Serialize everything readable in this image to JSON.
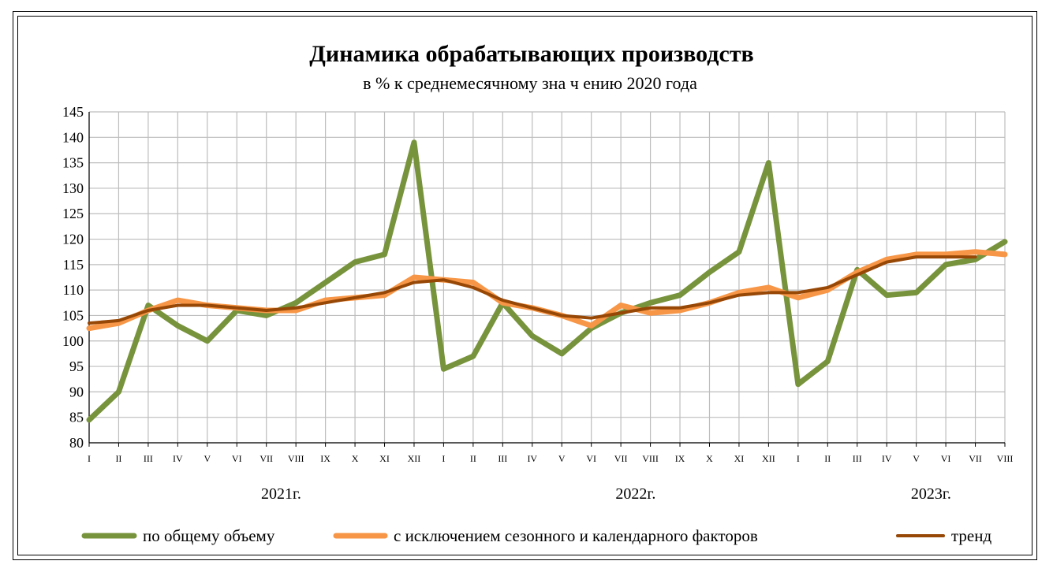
{
  "chart_data": {
    "type": "line",
    "title": "Динамика обрабатывающих производств",
    "subtitle": "в % к среднемесячному зна ч ению 2020 года",
    "ylim": [
      80,
      145
    ],
    "ytick_step": 5,
    "grid": true,
    "legend_position": "bottom",
    "categories": [
      "I",
      "II",
      "III",
      "IV",
      "V",
      "VI",
      "VII",
      "VIII",
      "IX",
      "X",
      "XI",
      "XII",
      "I",
      "II",
      "III",
      "IV",
      "V",
      "VI",
      "VII",
      "VIII",
      "IX",
      "X",
      "XI",
      "XII",
      "I",
      "II",
      "III",
      "IV",
      "V",
      "VI",
      "VII",
      "VIII"
    ],
    "year_labels": [
      {
        "label": "2021г.",
        "center_index": 6.5
      },
      {
        "label": "2022г.",
        "center_index": 18.5
      },
      {
        "label": "2023г.",
        "center_index": 28.5
      }
    ],
    "series": [
      {
        "name": "по общему объему",
        "color": "#77933C",
        "values": [
          84.5,
          90,
          107,
          103,
          100,
          106,
          105,
          107.5,
          111.5,
          115.5,
          117,
          139,
          94.5,
          97,
          107.5,
          101,
          97.5,
          102.5,
          105.5,
          107.5,
          109,
          113.5,
          117.5,
          135,
          91.5,
          96,
          114,
          109,
          109.5,
          115,
          116,
          119.5
        ]
      },
      {
        "name": "с исключением  сезонного и календарного факторов",
        "color": "#F79646",
        "values": [
          102.5,
          103.5,
          106,
          108,
          107,
          106.5,
          106,
          106,
          108,
          108.5,
          109,
          112.5,
          112,
          111.5,
          107.5,
          106.5,
          105,
          103,
          107,
          105.5,
          106,
          107.5,
          109.5,
          110.5,
          108.5,
          110,
          113.5,
          116,
          117,
          117,
          117.5,
          117
        ]
      },
      {
        "name": "тренд",
        "color": "#974706",
        "values": [
          103.5,
          104,
          106,
          107,
          107,
          106.5,
          106,
          106.5,
          107.5,
          108.5,
          109.5,
          111.5,
          112,
          110.5,
          108,
          106.5,
          105,
          104.5,
          105.5,
          106.5,
          106.5,
          107.5,
          109,
          109.5,
          109.5,
          110.5,
          113,
          115.5,
          116.5,
          116.5,
          116.5,
          null
        ]
      }
    ]
  }
}
